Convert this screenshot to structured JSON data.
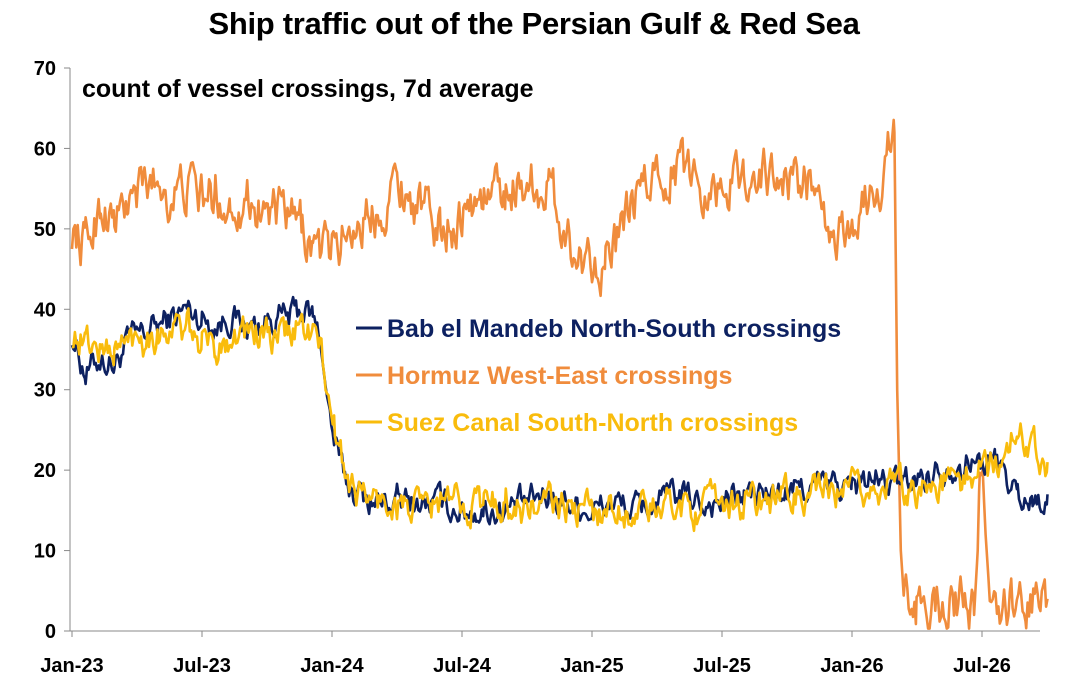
{
  "chart_data": {
    "type": "line",
    "title": "Ship traffic out of the Persian Gulf & Red Sea",
    "annotation": "count of vessel crossings, 7d average",
    "xlabel": "",
    "ylabel": "",
    "ylim": [
      0,
      70
    ],
    "yticks": [
      "0",
      "10",
      "20",
      "30",
      "40",
      "50",
      "60",
      "70"
    ],
    "xlim": [
      "2023-01-01",
      "2026-10-15"
    ],
    "xticks": [
      {
        "label": "Jan-23",
        "date": "2023-01-01"
      },
      {
        "label": "Jul-23",
        "date": "2023-07-01"
      },
      {
        "label": "Jan-24",
        "date": "2024-01-01"
      },
      {
        "label": "Jul-24",
        "date": "2024-07-01"
      },
      {
        "label": "Jan-25",
        "date": "2025-01-01"
      },
      {
        "label": "Jul-25",
        "date": "2025-07-01"
      },
      {
        "label": "Jan-26",
        "date": "2026-01-01"
      },
      {
        "label": "Jul-26",
        "date": "2026-07-01"
      }
    ],
    "grid": false,
    "legend_position": "center-right",
    "series": [
      {
        "name": "Bab el Mandeb North-South crossings",
        "color": "#0d2161",
        "points": [
          [
            "2023-01-01",
            37
          ],
          [
            "2023-01-20",
            32
          ],
          [
            "2023-02-10",
            34
          ],
          [
            "2023-03-01",
            33
          ],
          [
            "2023-03-20",
            36
          ],
          [
            "2023-04-10",
            37
          ],
          [
            "2023-05-01",
            38
          ],
          [
            "2023-05-20",
            39
          ],
          [
            "2023-06-10",
            40
          ],
          [
            "2023-07-01",
            39
          ],
          [
            "2023-07-20",
            38
          ],
          [
            "2023-08-10",
            39
          ],
          [
            "2023-09-01",
            38
          ],
          [
            "2023-09-20",
            38
          ],
          [
            "2023-10-10",
            39
          ],
          [
            "2023-11-01",
            39
          ],
          [
            "2023-11-20",
            40
          ],
          [
            "2023-12-05",
            39
          ],
          [
            "2023-12-15",
            36
          ],
          [
            "2023-12-25",
            29
          ],
          [
            "2024-01-05",
            23
          ],
          [
            "2024-01-15",
            20
          ],
          [
            "2024-01-25",
            18
          ],
          [
            "2024-02-10",
            17
          ],
          [
            "2024-03-01",
            16
          ],
          [
            "2024-04-01",
            16
          ],
          [
            "2024-05-01",
            16
          ],
          [
            "2024-06-01",
            16
          ],
          [
            "2024-07-01",
            15
          ],
          [
            "2024-08-01",
            15
          ],
          [
            "2024-09-01",
            15
          ],
          [
            "2024-10-01",
            16
          ],
          [
            "2024-11-01",
            17
          ],
          [
            "2024-12-01",
            16
          ],
          [
            "2025-01-01",
            15
          ],
          [
            "2025-02-01",
            16
          ],
          [
            "2025-03-01",
            15
          ],
          [
            "2025-04-01",
            16
          ],
          [
            "2025-05-01",
            17
          ],
          [
            "2025-06-01",
            16
          ],
          [
            "2025-07-01",
            16
          ],
          [
            "2025-08-01",
            17
          ],
          [
            "2025-09-01",
            17
          ],
          [
            "2025-10-01",
            17
          ],
          [
            "2025-11-01",
            18
          ],
          [
            "2025-12-01",
            18
          ],
          [
            "2026-01-01",
            18
          ],
          [
            "2026-02-01",
            19
          ],
          [
            "2026-03-01",
            18
          ],
          [
            "2026-04-01",
            19
          ],
          [
            "2026-05-01",
            20
          ],
          [
            "2026-06-01",
            21
          ],
          [
            "2026-07-01",
            21
          ],
          [
            "2026-07-20",
            21
          ],
          [
            "2026-08-05",
            19
          ],
          [
            "2026-08-20",
            17
          ],
          [
            "2026-09-10",
            16
          ],
          [
            "2026-10-01",
            17
          ]
        ],
        "noise": 1.5
      },
      {
        "name": "Hormuz West-East crossings",
        "color": "#f08c3c",
        "points": [
          [
            "2023-01-01",
            50
          ],
          [
            "2023-01-20",
            48
          ],
          [
            "2023-02-10",
            53
          ],
          [
            "2023-03-01",
            51
          ],
          [
            "2023-03-20",
            53
          ],
          [
            "2023-04-10",
            55
          ],
          [
            "2023-05-01",
            56
          ],
          [
            "2023-05-20",
            54
          ],
          [
            "2023-06-10",
            55
          ],
          [
            "2023-07-01",
            54
          ],
          [
            "2023-07-20",
            54
          ],
          [
            "2023-08-10",
            53
          ],
          [
            "2023-09-01",
            54
          ],
          [
            "2023-09-20",
            53
          ],
          [
            "2023-10-10",
            52
          ],
          [
            "2023-11-01",
            51
          ],
          [
            "2023-11-20",
            50
          ],
          [
            "2023-12-05",
            48
          ],
          [
            "2023-12-20",
            47
          ],
          [
            "2024-01-05",
            48
          ],
          [
            "2024-01-25",
            50
          ],
          [
            "2024-02-10",
            51
          ],
          [
            "2024-03-01",
            52
          ],
          [
            "2024-04-01",
            56
          ],
          [
            "2024-05-01",
            53
          ],
          [
            "2024-06-01",
            50
          ],
          [
            "2024-07-01",
            52
          ],
          [
            "2024-08-01",
            54
          ],
          [
            "2024-09-01",
            55
          ],
          [
            "2024-10-01",
            56
          ],
          [
            "2024-11-01",
            55
          ],
          [
            "2024-11-20",
            51
          ],
          [
            "2024-12-10",
            46
          ],
          [
            "2025-01-01",
            47
          ],
          [
            "2025-01-20",
            46
          ],
          [
            "2025-02-10",
            49
          ],
          [
            "2025-03-01",
            53
          ],
          [
            "2025-04-01",
            57
          ],
          [
            "2025-05-01",
            58
          ],
          [
            "2025-06-01",
            56
          ],
          [
            "2025-07-01",
            55
          ],
          [
            "2025-08-01",
            57
          ],
          [
            "2025-09-01",
            57
          ],
          [
            "2025-10-01",
            56
          ],
          [
            "2025-11-01",
            56
          ],
          [
            "2025-11-20",
            50
          ],
          [
            "2025-12-10",
            48
          ],
          [
            "2026-01-01",
            51
          ],
          [
            "2026-01-20",
            53
          ],
          [
            "2026-02-10",
            56
          ],
          [
            "2026-02-22",
            61
          ],
          [
            "2026-03-01",
            62
          ],
          [
            "2026-03-05",
            30
          ],
          [
            "2026-03-10",
            10
          ],
          [
            "2026-03-15",
            3
          ],
          [
            "2026-04-01",
            3
          ],
          [
            "2026-05-01",
            4
          ],
          [
            "2026-06-01",
            3
          ],
          [
            "2026-06-20",
            2
          ],
          [
            "2026-06-25",
            10
          ],
          [
            "2026-06-28",
            21
          ],
          [
            "2026-07-02",
            20
          ],
          [
            "2026-07-06",
            12
          ],
          [
            "2026-07-12",
            4
          ],
          [
            "2026-08-01",
            3
          ],
          [
            "2026-09-01",
            3
          ],
          [
            "2026-10-01",
            4
          ]
        ],
        "noise": 2.6
      },
      {
        "name": "Suez Canal South-North crossings",
        "color": "#f9bc0c",
        "points": [
          [
            "2023-01-01",
            37
          ],
          [
            "2023-01-20",
            36
          ],
          [
            "2023-02-10",
            35
          ],
          [
            "2023-03-01",
            35
          ],
          [
            "2023-03-20",
            36
          ],
          [
            "2023-04-10",
            37
          ],
          [
            "2023-05-01",
            37
          ],
          [
            "2023-05-20",
            38
          ],
          [
            "2023-06-10",
            37
          ],
          [
            "2023-07-01",
            36
          ],
          [
            "2023-07-20",
            35
          ],
          [
            "2023-08-10",
            37
          ],
          [
            "2023-09-01",
            37
          ],
          [
            "2023-09-20",
            37
          ],
          [
            "2023-10-10",
            36
          ],
          [
            "2023-11-01",
            37
          ],
          [
            "2023-11-20",
            38
          ],
          [
            "2023-12-05",
            37
          ],
          [
            "2023-12-15",
            35
          ],
          [
            "2023-12-25",
            30
          ],
          [
            "2024-01-05",
            25
          ],
          [
            "2024-01-15",
            21
          ],
          [
            "2024-01-25",
            19
          ],
          [
            "2024-02-10",
            17
          ],
          [
            "2024-03-01",
            16
          ],
          [
            "2024-04-01",
            16
          ],
          [
            "2024-05-01",
            15
          ],
          [
            "2024-06-01",
            16
          ],
          [
            "2024-07-01",
            16
          ],
          [
            "2024-08-01",
            16
          ],
          [
            "2024-09-01",
            16
          ],
          [
            "2024-10-01",
            15
          ],
          [
            "2024-11-01",
            16
          ],
          [
            "2024-12-01",
            15
          ],
          [
            "2025-01-01",
            15
          ],
          [
            "2025-02-01",
            15
          ],
          [
            "2025-03-01",
            15
          ],
          [
            "2025-04-01",
            15
          ],
          [
            "2025-05-01",
            16
          ],
          [
            "2025-06-01",
            15
          ],
          [
            "2025-07-01",
            16
          ],
          [
            "2025-08-01",
            16
          ],
          [
            "2025-09-01",
            16
          ],
          [
            "2025-10-01",
            17
          ],
          [
            "2025-11-01",
            17
          ],
          [
            "2025-12-01",
            17
          ],
          [
            "2026-01-01",
            17
          ],
          [
            "2026-02-01",
            18
          ],
          [
            "2026-03-01",
            18
          ],
          [
            "2026-04-01",
            18
          ],
          [
            "2026-05-01",
            18
          ],
          [
            "2026-06-01",
            19
          ],
          [
            "2026-07-01",
            20
          ],
          [
            "2026-07-20",
            21
          ],
          [
            "2026-08-05",
            22
          ],
          [
            "2026-08-20",
            25
          ],
          [
            "2026-09-10",
            24
          ],
          [
            "2026-10-01",
            21
          ]
        ],
        "noise": 1.8
      }
    ]
  }
}
